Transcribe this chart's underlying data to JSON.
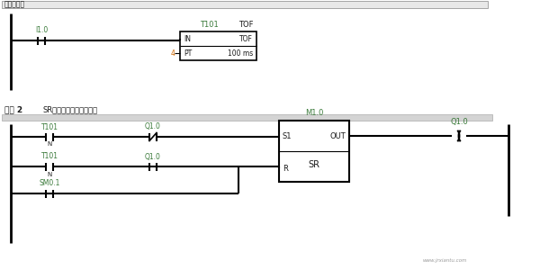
{
  "bg_color": "#f2f2f2",
  "white": "#ffffff",
  "black": "#000000",
  "header_color": "#e8e8e8",
  "bar_color": "#d4d4d4",
  "green_text": "#3a7a3a",
  "dark_text": "#1a1a1a",
  "orange_text": "#cc6600",
  "network1_desc": "防抖抄措施",
  "network2_label": "网路 2",
  "network2_desc": "SR触发器构成双稳态电路",
  "contact_I10": "I1.0",
  "timer_label": "T101",
  "timer_type": "TOF",
  "timer_pt_num": "4",
  "timer_pt_label": "PT",
  "timer_time": "100 ms",
  "timer_in": "IN",
  "contact_T101": "T101",
  "contact_Q10": "Q1.0",
  "sr_block_label": "SR",
  "sr_s1": "S1",
  "sr_out": "OUT",
  "sr_r": "R",
  "sr_m10": "M1.0",
  "output_Q10": "Q1.0",
  "contact_SM01": "SM0.1"
}
